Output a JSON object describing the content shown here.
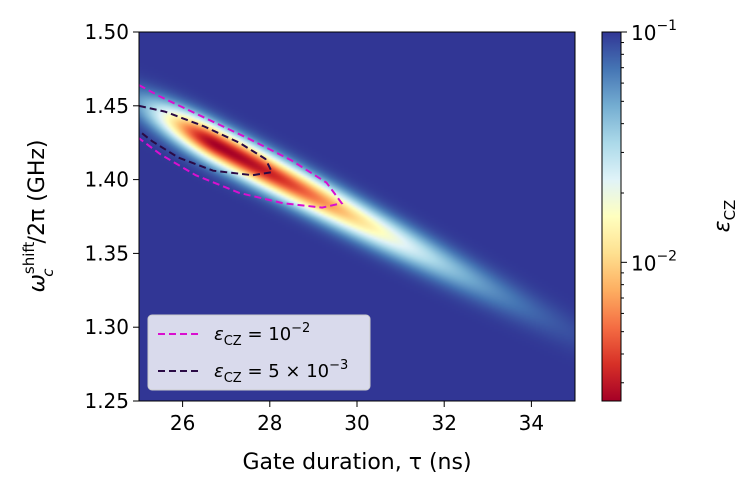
{
  "chart_data": {
    "type": "heatmap",
    "title": "",
    "xlabel": "Gate duration, τ (ns)",
    "ylabel": "ω_c^shift/2π (GHz)",
    "ylabel_parts": {
      "base": "ω",
      "sub": "c",
      "sup": "shift",
      "rest": "/2π (GHz)"
    },
    "xlim": [
      25,
      35
    ],
    "ylim": [
      1.25,
      1.5
    ],
    "xticks": [
      26,
      28,
      30,
      32,
      34
    ],
    "xtick_labels": [
      "26",
      "28",
      "30",
      "32",
      "34"
    ],
    "yticks": [
      1.25,
      1.3,
      1.35,
      1.4,
      1.45,
      1.5
    ],
    "ytick_labels": [
      "1.25",
      "1.30",
      "1.35",
      "1.40",
      "1.45",
      "1.50"
    ],
    "colormap": "RdYlBu",
    "colorbar": {
      "label": "ε_CZ",
      "label_base": "ε",
      "label_sub": "CZ",
      "scale": "log",
      "range": [
        0.0025,
        0.1
      ],
      "major_ticks": [
        0.01,
        0.1
      ],
      "major_tick_labels": [
        {
          "base": "10",
          "exp": "−2"
        },
        {
          "base": "10",
          "exp": "−1"
        }
      ],
      "minor_ticks": [
        0.003,
        0.004,
        0.005,
        0.006,
        0.007,
        0.008,
        0.009,
        0.02,
        0.03,
        0.04,
        0.05,
        0.06,
        0.07,
        0.08,
        0.09
      ]
    },
    "error_landscape": {
      "optimum": {
        "tau_ns": 26.8,
        "omega_ghz": 1.423,
        "error": 0.0025
      },
      "ridge_slope_ghz_per_ns": -0.0155,
      "saturation_error": 0.1
    },
    "contours": [
      {
        "name": "ε_CZ = 10^-2",
        "level": 0.01,
        "color": "#d90fcf",
        "points": [
          [
            25.0,
            1.464
          ],
          [
            25.5,
            1.456
          ],
          [
            26.5,
            1.442
          ],
          [
            27.5,
            1.428
          ],
          [
            28.5,
            1.413
          ],
          [
            29.3,
            1.398
          ],
          [
            29.65,
            1.384
          ],
          [
            29.2,
            1.381
          ],
          [
            28.3,
            1.384
          ],
          [
            27.3,
            1.391
          ],
          [
            26.3,
            1.403
          ],
          [
            25.5,
            1.417
          ],
          [
            25.0,
            1.428
          ]
        ]
      },
      {
        "name": "ε_CZ = 5×10^-3",
        "level": 0.005,
        "color": "#2a0a45",
        "points": [
          [
            25.0,
            1.45
          ],
          [
            25.6,
            1.446
          ],
          [
            26.5,
            1.436
          ],
          [
            27.3,
            1.425
          ],
          [
            27.9,
            1.414
          ],
          [
            28.05,
            1.405
          ],
          [
            27.6,
            1.403
          ],
          [
            26.7,
            1.406
          ],
          [
            25.9,
            1.415
          ],
          [
            25.3,
            1.426
          ],
          [
            25.0,
            1.433
          ]
        ]
      }
    ],
    "legend": {
      "position": "lower-left",
      "entries": [
        {
          "base": "ε",
          "sub": "CZ",
          "rest": " = 10",
          "exp": "−2",
          "tail": "",
          "color": "#d90fcf"
        },
        {
          "base": "ε",
          "sub": "CZ",
          "rest": " = 5 × 10",
          "exp": "−3",
          "tail": "",
          "color": "#2a0a45"
        }
      ]
    }
  }
}
